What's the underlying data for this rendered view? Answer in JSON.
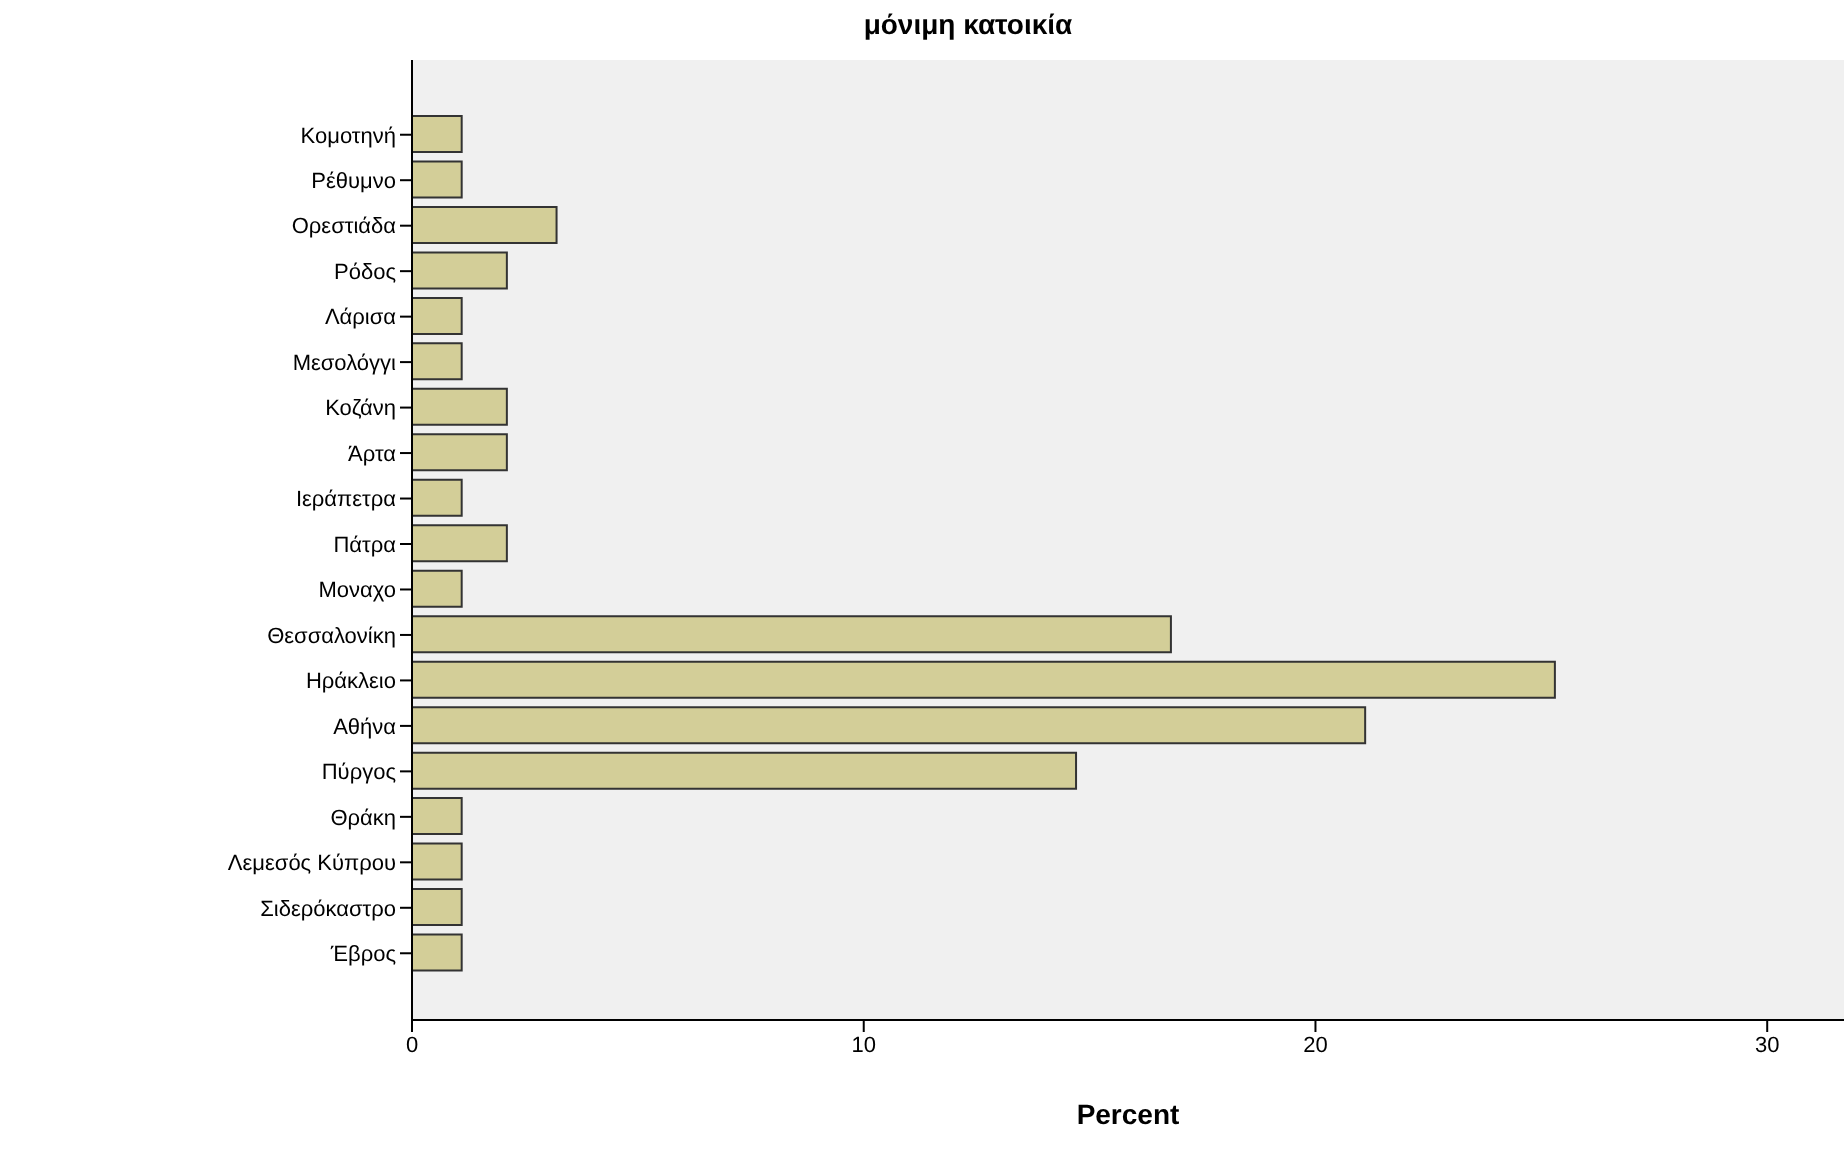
{
  "chart_data": {
    "type": "bar",
    "orientation": "horizontal",
    "title": "μόνιμη κατοικία",
    "xlabel": "Percent",
    "categories": [
      "Κομοτηνή",
      "Ρέθυμνο",
      "Ορεστιάδα",
      "Ρόδος",
      "Λάρισα",
      "Μεσολόγγι",
      "Κοζάνη",
      "Άρτα",
      "Ιεράπετρα",
      "Πάτρα",
      "Μοναχο",
      "Θεσσαλονίκη",
      "Ηράκλειο",
      "Αθήνα",
      "Πύργος",
      "Θράκη",
      "Λεμεσός Κύπρου",
      "Σιδερόκαστρο",
      "Έβρος"
    ],
    "values": [
      1.1,
      1.1,
      3.2,
      2.1,
      1.1,
      1.1,
      2.1,
      2.1,
      1.1,
      2.1,
      1.1,
      16.8,
      25.3,
      21.1,
      14.7,
      1.1,
      1.1,
      1.1,
      1.1
    ],
    "color": "#d3ce98",
    "xlim": [
      0,
      31.7
    ],
    "xticks": [
      0,
      10,
      20,
      30
    ],
    "grid": false
  }
}
